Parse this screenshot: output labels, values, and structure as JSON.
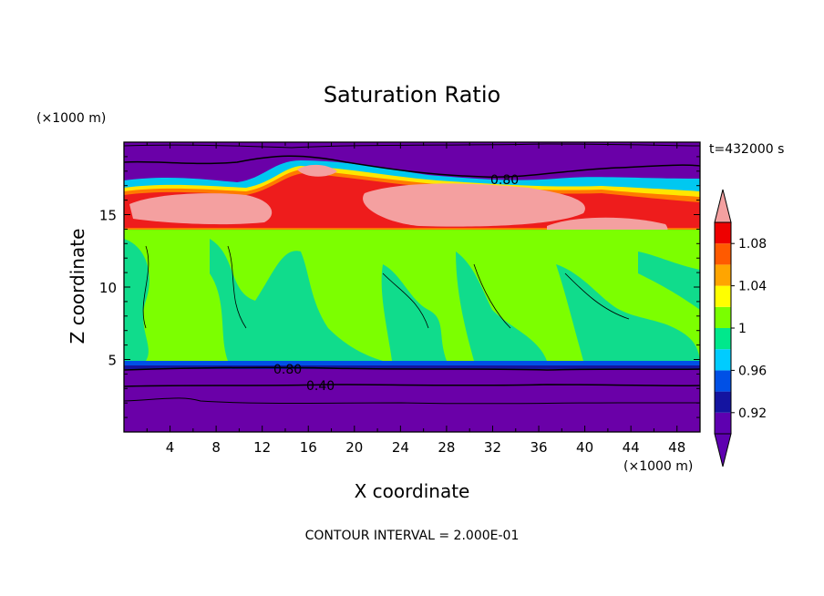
{
  "chart_data": {
    "type": "heatmap",
    "title": "Saturation Ratio",
    "xlabel": "X coordinate",
    "ylabel": "Z coordinate",
    "x_unit": "(×1000 m)",
    "z_unit": "(×1000 m)",
    "time_label": "t=432000 s",
    "footer": "CONTOUR INTERVAL = 2.000E-01",
    "xlim": [
      0,
      50
    ],
    "ylim": [
      0,
      20
    ],
    "x_ticks": [
      "4",
      "8",
      "12",
      "16",
      "20",
      "24",
      "28",
      "32",
      "36",
      "40",
      "44",
      "48"
    ],
    "y_ticks": [
      "5",
      "10",
      "15"
    ],
    "contour_labels": [
      "0.80",
      "0.80",
      "0.40"
    ],
    "colorbar": {
      "tick_labels": [
        "1.08",
        "1.04",
        "1",
        "0.96",
        "0.92"
      ],
      "levels": [
        0.9,
        0.92,
        0.94,
        0.96,
        0.98,
        1.0,
        1.02,
        1.04,
        1.06,
        1.08,
        1.1
      ],
      "colors": [
        "#5e00b0",
        "#1414a0",
        "#0050e6",
        "#00ccff",
        "#00e88c",
        "#7aff00",
        "#ffff00",
        "#ffa500",
        "#ff5a00",
        "#ee0000",
        "#f4a0a0"
      ],
      "extend": "both"
    },
    "layers": [
      {
        "z_range": [
          0,
          4.8
        ],
        "value_desc": "below 0.90",
        "color": "#6a00a8"
      },
      {
        "z_range": [
          4.8,
          14
        ],
        "value_desc": "about 0.98–1.00",
        "color": "#14e08c"
      },
      {
        "z_range": [
          14,
          17.5
        ],
        "value_desc": "1.02–above 1.10",
        "color": "#f4a0a0"
      },
      {
        "z_range": [
          17.5,
          20
        ],
        "value_desc": "below 0.90",
        "color": "#6a00a8"
      }
    ]
  }
}
